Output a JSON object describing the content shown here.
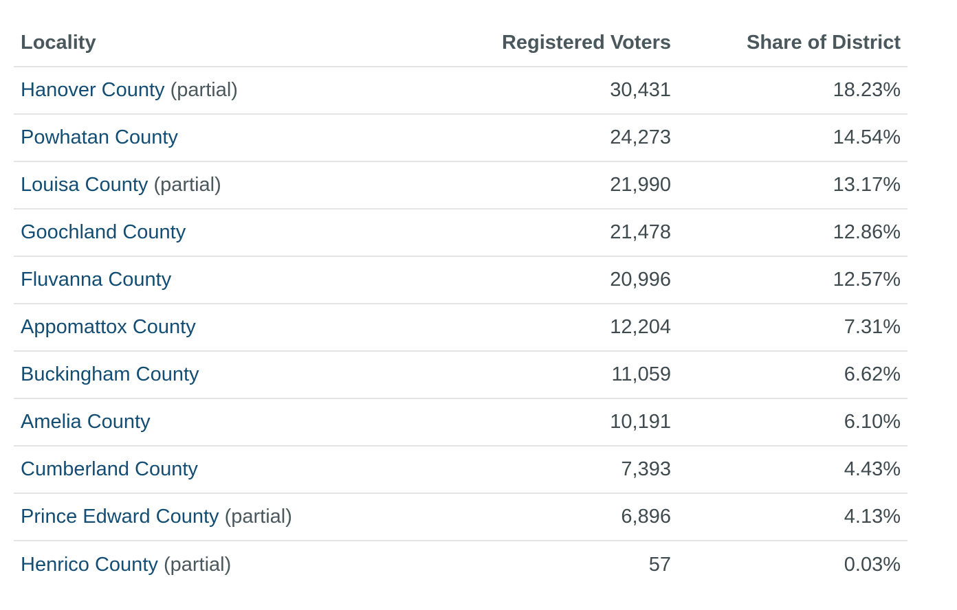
{
  "table": {
    "headers": {
      "locality": "Locality",
      "registered_voters": "Registered Voters",
      "share_of_district": "Share of District"
    },
    "rows": [
      {
        "name": "Hanover County",
        "qualifier": "(partial)",
        "voters": "30,431",
        "share": "18.23%"
      },
      {
        "name": "Powhatan County",
        "qualifier": "",
        "voters": "24,273",
        "share": "14.54%"
      },
      {
        "name": "Louisa County",
        "qualifier": "(partial)",
        "voters": "21,990",
        "share": "13.17%"
      },
      {
        "name": "Goochland County",
        "qualifier": "",
        "voters": "21,478",
        "share": "12.86%"
      },
      {
        "name": "Fluvanna County",
        "qualifier": "",
        "voters": "20,996",
        "share": "12.57%"
      },
      {
        "name": "Appomattox County",
        "qualifier": "",
        "voters": "12,204",
        "share": "7.31%"
      },
      {
        "name": "Buckingham County",
        "qualifier": "",
        "voters": "11,059",
        "share": "6.62%"
      },
      {
        "name": "Amelia County",
        "qualifier": "",
        "voters": "10,191",
        "share": "6.10%"
      },
      {
        "name": "Cumberland County",
        "qualifier": "",
        "voters": "7,393",
        "share": "4.43%"
      },
      {
        "name": "Prince Edward County",
        "qualifier": "(partial)",
        "voters": "6,896",
        "share": "4.13%"
      },
      {
        "name": "Henrico County",
        "qualifier": "(partial)",
        "voters": "57",
        "share": "0.03%"
      }
    ]
  }
}
